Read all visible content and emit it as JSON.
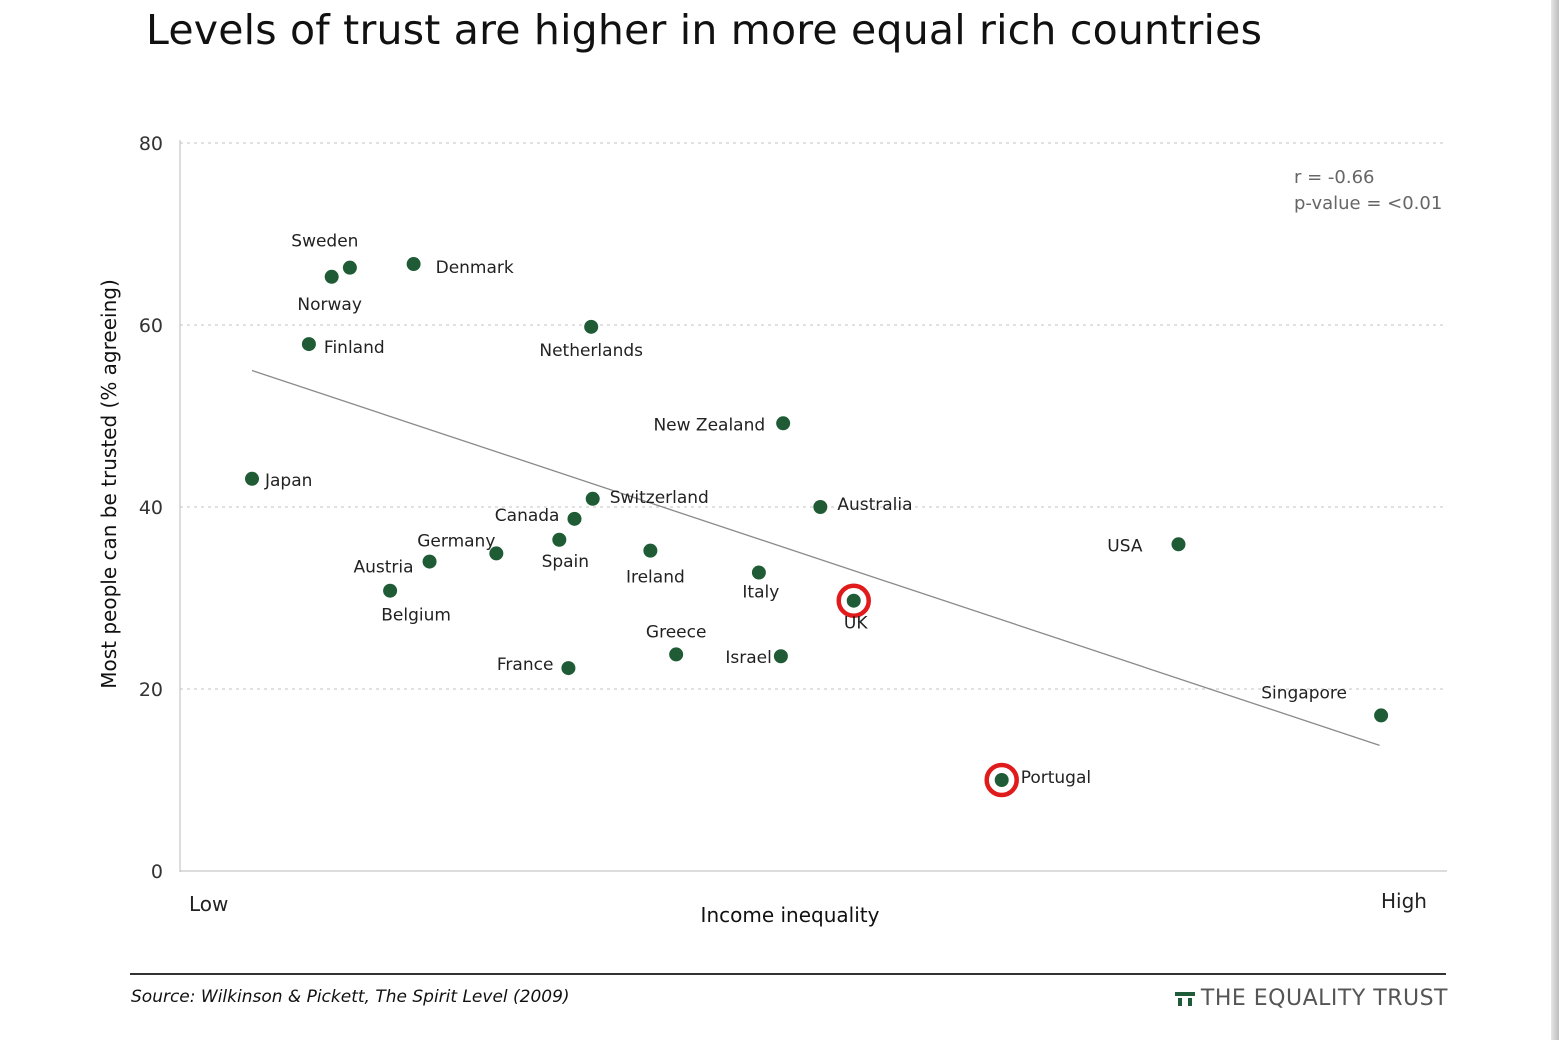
{
  "title": "Levels of trust are higher in more equal rich countries",
  "chart_data": {
    "type": "scatter",
    "title": "Levels of trust are higher in more equal rich countries",
    "xlabel": "Income inequality",
    "ylabel": "Most people can be trusted (% agreeing)",
    "x_tick_labels": [
      "Low",
      "High"
    ],
    "ylim": [
      0,
      80
    ],
    "yticks": [
      0,
      20,
      40,
      60,
      80
    ],
    "grid": "horizontal dotted",
    "stats": [
      "r = -0.66",
      "p-value = <0.01"
    ],
    "trendline": {
      "x1": 1.0,
      "y1": 55.0,
      "x2": 15.86,
      "y2": 13.8
    },
    "points": [
      {
        "name": "Japan",
        "x": 1.0,
        "y": 43.1
      },
      {
        "name": "Finland",
        "x": 1.75,
        "y": 57.9
      },
      {
        "name": "Norway",
        "x": 2.05,
        "y": 65.3
      },
      {
        "name": "Sweden",
        "x": 2.29,
        "y": 66.3
      },
      {
        "name": "Denmark",
        "x": 3.13,
        "y": 66.7
      },
      {
        "name": "Belgium",
        "x": 2.82,
        "y": 30.8
      },
      {
        "name": "Austria",
        "x": 3.34,
        "y": 34.0
      },
      {
        "name": "Germany",
        "x": 4.22,
        "y": 34.9
      },
      {
        "name": "Netherlands",
        "x": 5.47,
        "y": 59.8
      },
      {
        "name": "Spain",
        "x": 5.05,
        "y": 36.4
      },
      {
        "name": "Canada",
        "x": 5.25,
        "y": 38.7
      },
      {
        "name": "France",
        "x": 5.17,
        "y": 22.3
      },
      {
        "name": "Switzerland",
        "x": 5.49,
        "y": 40.9
      },
      {
        "name": "Ireland",
        "x": 6.25,
        "y": 35.2
      },
      {
        "name": "Greece",
        "x": 6.59,
        "y": 23.8
      },
      {
        "name": "New Zealand",
        "x": 8.0,
        "y": 49.2
      },
      {
        "name": "Italy",
        "x": 7.68,
        "y": 32.8
      },
      {
        "name": "Israel",
        "x": 7.97,
        "y": 23.6
      },
      {
        "name": "Australia",
        "x": 8.49,
        "y": 40.0
      },
      {
        "name": "UK",
        "x": 8.93,
        "y": 29.7,
        "highlight": true
      },
      {
        "name": "Portugal",
        "x": 10.88,
        "y": 10.0,
        "highlight": true
      },
      {
        "name": "USA",
        "x": 13.21,
        "y": 35.9
      },
      {
        "name": "Singapore",
        "x": 15.88,
        "y": 17.1
      }
    ],
    "colors": {
      "point": "#1f5c36",
      "highlight_ring": "#e01b1b",
      "trendline": "#888888",
      "grid": "#cfcfcf"
    }
  },
  "source": "Source: Wilkinson & Pickett, The Spirit Level (2009)",
  "brand": "THE EQUALITY TRUST"
}
